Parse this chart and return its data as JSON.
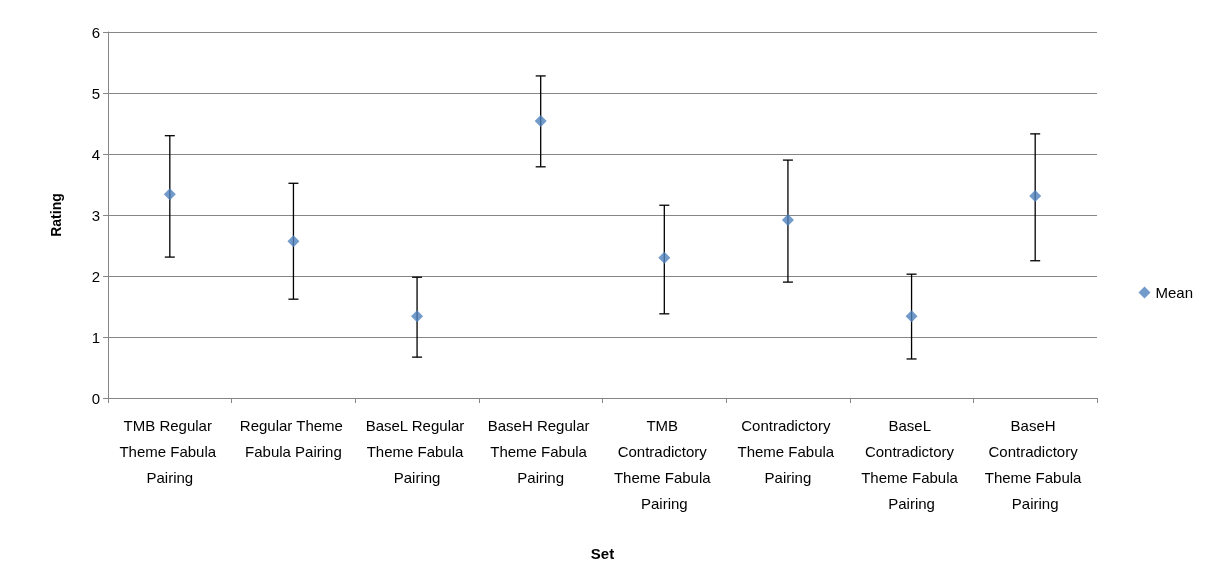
{
  "chart_data": {
    "type": "scatter",
    "xlabel": "Set",
    "ylabel": "Rating",
    "categories": [
      "TMB Regular Theme Fabula Pairing",
      "Regular Theme Fabula Pairing",
      "BaseL Regular Theme Fabula Pairing",
      "BaseH Regular Theme Fabula Pairing",
      "TMB Contradictory Theme Fabula Pairing",
      "Contradictory Theme Fabula Pairing",
      "BaseL Contradictory Theme Fabula Pairing",
      "BaseH Contradictory Theme Fabula Pairing"
    ],
    "series": [
      {
        "name": "Mean",
        "color": "#4f81bd",
        "values": [
          3.34,
          2.57,
          1.34,
          4.54,
          2.3,
          2.92,
          1.34,
          3.31
        ],
        "errors": [
          [
            2.31,
            4.3
          ],
          [
            1.62,
            3.52
          ],
          [
            0.67,
            1.98
          ],
          [
            3.79,
            5.28
          ],
          [
            1.38,
            3.16
          ],
          [
            1.9,
            3.9
          ],
          [
            0.64,
            2.03
          ],
          [
            2.25,
            4.33
          ]
        ]
      }
    ],
    "ylim": [
      0,
      6
    ],
    "yticks": [
      0,
      1,
      2,
      3,
      4,
      5,
      6
    ],
    "grid": "y",
    "legend": "right",
    "marker": "diamond"
  }
}
